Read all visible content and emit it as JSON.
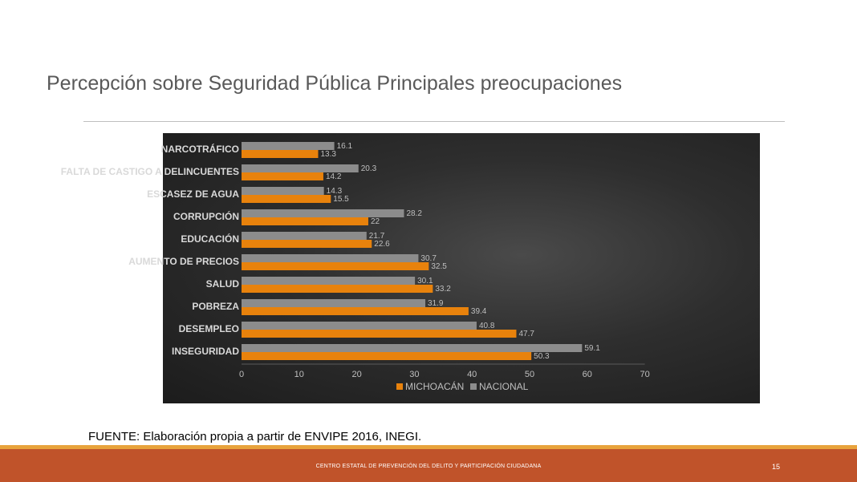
{
  "slide": {
    "title": "Percepción sobre Seguridad Pública Principales preocupaciones",
    "source": "FUENTE: Elaboración propia a partir de ENVIPE 2016, INEGI.",
    "footer": "CENTRO ESTATAL DE PREVENCIÓN DEL DELITO Y PARTICIPACIÓN CIUDADANA",
    "page_number": "15"
  },
  "chart_data": {
    "type": "bar",
    "orientation": "horizontal",
    "categories": [
      "NARCOTRÁFICO",
      "FALTA DE CASTIGO A DELINCUENTES",
      "ESCASEZ DE AGUA",
      "CORRUPCIÓN",
      "EDUCACIÓN",
      "AUMENTO DE PRECIOS",
      "SALUD",
      "POBREZA",
      "DESEMPLEO",
      "INSEGURIDAD"
    ],
    "series": [
      {
        "name": "NACIONAL",
        "color": "#8c8c8c",
        "values": [
          16.1,
          20.3,
          14.3,
          28.2,
          21.7,
          30.7,
          30.1,
          31.9,
          40.8,
          59.1
        ],
        "labels": [
          "16.1",
          "20.3",
          "14.3",
          "28.2",
          "21.7",
          "30.7",
          "30.1",
          "31.9",
          "40.8",
          "59.1"
        ]
      },
      {
        "name": "MICHOACÁN",
        "color": "#e8820c",
        "values": [
          13.3,
          14.2,
          15.5,
          22,
          22.6,
          32.5,
          33.2,
          39.4,
          47.7,
          50.3
        ],
        "labels": [
          "13.3",
          "14.2",
          "15.5",
          "22",
          "22.6",
          "32.5",
          "33.2",
          "39.4",
          "47.7",
          "50.3"
        ]
      }
    ],
    "legend_order": [
      "MICHOACÁN",
      "NACIONAL"
    ],
    "xlim": [
      0,
      70
    ],
    "xticks": [
      "0",
      "10",
      "20",
      "30",
      "40",
      "50",
      "60",
      "70"
    ],
    "legend_position": "bottom",
    "background": "dark"
  }
}
